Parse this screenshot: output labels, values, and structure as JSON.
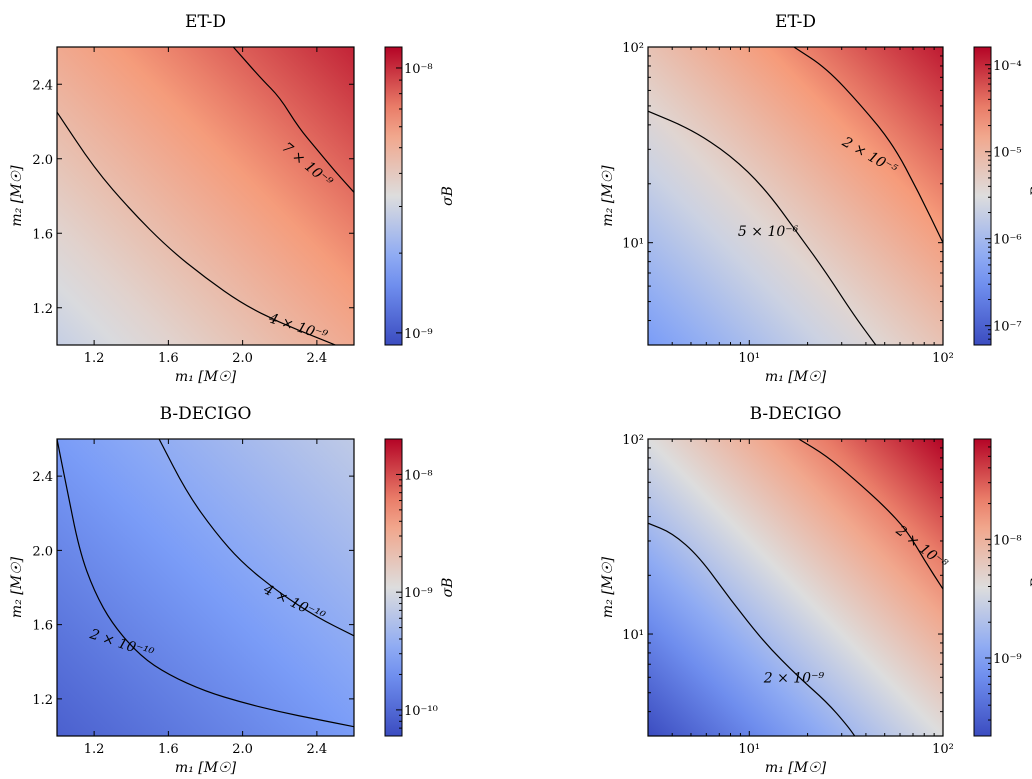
{
  "chart_data": [
    {
      "type": "heatmap",
      "title": "ET-D",
      "xlabel": "m₁ [M☉]",
      "ylabel": "m₂ [M☉]",
      "xscale": "linear",
      "yscale": "linear",
      "xlim": [
        1.0,
        2.6
      ],
      "ylim": [
        1.0,
        2.6
      ],
      "xticks": [
        {
          "v": 1.2,
          "label": "1.2"
        },
        {
          "v": 1.6,
          "label": "1.6"
        },
        {
          "v": 2.0,
          "label": "2.0"
        },
        {
          "v": 2.4,
          "label": "2.4"
        }
      ],
      "yticks": [
        {
          "v": 1.2,
          "label": "1.2"
        },
        {
          "v": 1.6,
          "label": "1.6"
        },
        {
          "v": 2.0,
          "label": "2.0"
        },
        {
          "v": 2.4,
          "label": "2.4"
        }
      ],
      "colorbar": {
        "label": "σB",
        "scale": "log",
        "colormap": "coolwarm",
        "range": [
          9e-10,
          1.2e-08
        ],
        "data_range": [
          2.8e-09,
          1.05e-08
        ],
        "ticks": [
          {
            "v": 1e-09,
            "label": "10⁻⁹"
          },
          {
            "v": 1e-08,
            "label": "10⁻⁸"
          }
        ]
      },
      "contours": [
        {
          "label": "4 × 10⁻⁹",
          "level": 4e-09,
          "path": [
            [
              1.0,
              2.25
            ],
            [
              1.2,
              1.95
            ],
            [
              1.4,
              1.72
            ],
            [
              1.6,
              1.52
            ],
            [
              1.8,
              1.36
            ],
            [
              2.0,
              1.22
            ],
            [
              2.2,
              1.12
            ],
            [
              2.4,
              1.04
            ],
            [
              2.5,
              1.0
            ]
          ],
          "label_at": [
            2.3,
            1.1
          ],
          "label_angle": 18
        },
        {
          "label": "7 × 10⁻⁹",
          "level": 7e-09,
          "path": [
            [
              1.95,
              2.6
            ],
            [
              2.1,
              2.43
            ],
            [
              2.2,
              2.33
            ],
            [
              2.3,
              2.17
            ],
            [
              2.4,
              2.05
            ],
            [
              2.5,
              1.93
            ],
            [
              2.6,
              1.82
            ]
          ],
          "label_at": [
            2.35,
            1.97
          ],
          "label_angle": 40
        }
      ]
    },
    {
      "type": "heatmap",
      "title": "ET-D",
      "xlabel": "m₁ [M☉]",
      "ylabel": "m₂ [M☉]",
      "xscale": "log",
      "yscale": "log",
      "xlim": [
        3,
        100
      ],
      "ylim": [
        3,
        100
      ],
      "xticks": [
        {
          "v": 10,
          "label": "10¹"
        },
        {
          "v": 100,
          "label": "10²"
        }
      ],
      "yticks": [
        {
          "v": 10,
          "label": "10¹"
        },
        {
          "v": 100,
          "label": "10²"
        }
      ],
      "colorbar": {
        "label": "σB",
        "scale": "log",
        "colormap": "coolwarm",
        "range": [
          6e-08,
          0.00016
        ],
        "data_range": [
          4e-07,
          0.00012
        ],
        "ticks": [
          {
            "v": 1e-07,
            "label": "10⁻⁷"
          },
          {
            "v": 1e-06,
            "label": "10⁻⁶"
          },
          {
            "v": 1e-05,
            "label": "10⁻⁵"
          },
          {
            "v": 0.0001,
            "label": "10⁻⁴"
          }
        ]
      },
      "contours": [
        {
          "label": "5 × 10⁻⁶",
          "level": 5e-06,
          "path": [
            [
              3,
              47
            ],
            [
              5,
              38
            ],
            [
              8,
              28
            ],
            [
              12,
              19
            ],
            [
              18,
              11
            ],
            [
              25,
              7
            ],
            [
              35,
              4.2
            ],
            [
              45,
              3
            ]
          ],
          "label_at": [
            12.5,
            11.5
          ],
          "label_angle": 0
        },
        {
          "label": "2 × 10⁻⁵",
          "level": 2e-05,
          "path": [
            [
              17,
              100
            ],
            [
              25,
              78
            ],
            [
              38,
              50
            ],
            [
              55,
              32
            ],
            [
              75,
              18
            ],
            [
              100,
              10
            ]
          ],
          "label_at": [
            42,
            28
          ],
          "label_angle": 30
        }
      ]
    },
    {
      "type": "heatmap",
      "title": "B-DECIGO",
      "xlabel": "m₁ [M☉]",
      "ylabel": "m₂ [M☉]",
      "xscale": "linear",
      "yscale": "linear",
      "xlim": [
        1.0,
        2.6
      ],
      "ylim": [
        1.0,
        2.6
      ],
      "xticks": [
        {
          "v": 1.2,
          "label": "1.2"
        },
        {
          "v": 1.6,
          "label": "1.6"
        },
        {
          "v": 2.0,
          "label": "2.0"
        },
        {
          "v": 2.4,
          "label": "2.4"
        }
      ],
      "yticks": [
        {
          "v": 1.2,
          "label": "1.2"
        },
        {
          "v": 1.6,
          "label": "1.6"
        },
        {
          "v": 2.0,
          "label": "2.0"
        },
        {
          "v": 2.4,
          "label": "2.4"
        }
      ],
      "colorbar": {
        "label": "σB",
        "scale": "log",
        "colormap": "coolwarm",
        "range": [
          6e-11,
          2e-08
        ],
        "data_range": [
          8.5e-11,
          7e-10
        ],
        "ticks": [
          {
            "v": 1e-10,
            "label": "10⁻¹⁰"
          },
          {
            "v": 1e-09,
            "label": "10⁻⁹"
          },
          {
            "v": 1e-08,
            "label": "10⁻⁸"
          }
        ]
      },
      "contours": [
        {
          "label": "2 × 10⁻¹⁰",
          "level": 2e-10,
          "path": [
            [
              1.0,
              2.6
            ],
            [
              1.05,
              2.35
            ],
            [
              1.12,
              2.0
            ],
            [
              1.2,
              1.78
            ],
            [
              1.3,
              1.6
            ],
            [
              1.45,
              1.43
            ],
            [
              1.6,
              1.33
            ],
            [
              1.8,
              1.24
            ],
            [
              2.0,
              1.18
            ],
            [
              2.2,
              1.13
            ],
            [
              2.4,
              1.09
            ],
            [
              2.6,
              1.05
            ]
          ],
          "label_at": [
            1.35,
            1.5
          ],
          "label_angle": 18
        },
        {
          "label": "4 × 10⁻¹⁰",
          "level": 4e-10,
          "path": [
            [
              1.55,
              2.6
            ],
            [
              1.7,
              2.31
            ],
            [
              1.85,
              2.1
            ],
            [
              2.0,
              1.93
            ],
            [
              2.2,
              1.77
            ],
            [
              2.4,
              1.64
            ],
            [
              2.6,
              1.54
            ]
          ],
          "label_at": [
            2.28,
            1.72
          ],
          "label_angle": 26
        }
      ]
    },
    {
      "type": "heatmap",
      "title": "B-DECIGO",
      "xlabel": "m₁ [M☉]",
      "ylabel": "m₂ [M☉]",
      "xscale": "log",
      "yscale": "log",
      "xlim": [
        3,
        100
      ],
      "ylim": [
        3,
        100
      ],
      "xticks": [
        {
          "v": 10,
          "label": "10¹"
        },
        {
          "v": 100,
          "label": "10²"
        }
      ],
      "yticks": [
        {
          "v": 10,
          "label": "10¹"
        },
        {
          "v": 100,
          "label": "10²"
        }
      ],
      "colorbar": {
        "label": "σB",
        "scale": "log",
        "colormap": "coolwarm",
        "range": [
          2.2e-10,
          7e-08
        ],
        "data_range": [
          2.2e-10,
          7e-08
        ],
        "ticks": [
          {
            "v": 1e-09,
            "label": "10⁻⁹"
          },
          {
            "v": 1e-08,
            "label": "10⁻⁸"
          }
        ]
      },
      "contours": [
        {
          "label": "2 × 10⁻⁹",
          "level": 2e-09,
          "path": [
            [
              3,
              37
            ],
            [
              4,
              33
            ],
            [
              5.5,
              25
            ],
            [
              8,
              15
            ],
            [
              12,
              9
            ],
            [
              18,
              6
            ],
            [
              25,
              4.5
            ],
            [
              32,
              3.4
            ],
            [
              35,
              3
            ]
          ],
          "label_at": [
            17,
            6
          ],
          "label_angle": 0
        },
        {
          "label": "2 × 10⁻⁸",
          "level": 2e-08,
          "path": [
            [
              18,
              100
            ],
            [
              25,
              82
            ],
            [
              35,
              62
            ],
            [
              50,
              45
            ],
            [
              65,
              34
            ],
            [
              80,
              24
            ],
            [
              100,
              17
            ]
          ],
          "label_at": [
            78,
            28
          ],
          "label_angle": 38
        }
      ]
    }
  ]
}
